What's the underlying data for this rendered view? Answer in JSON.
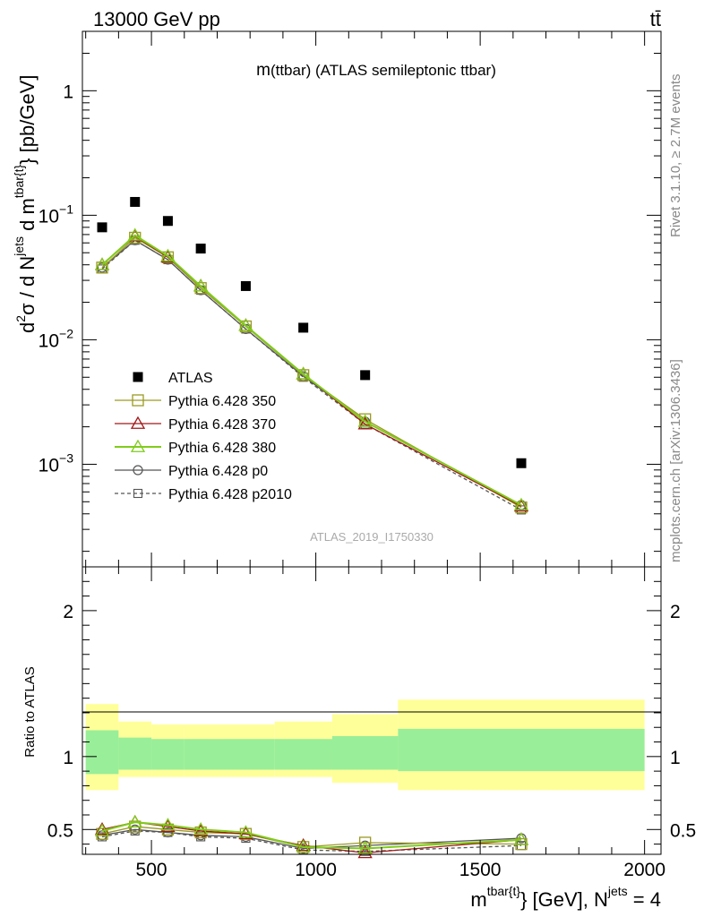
{
  "header": {
    "energy_label": "13000 GeV pp",
    "process_label": "tt̄"
  },
  "side": {
    "rivet_label": "Rivet 3.1.10, ≥ 2.7M events",
    "mcplots_label": "mcplots.cern.ch [arXiv:1306.3436]"
  },
  "colors": {
    "data": "#000000",
    "py350": "#9a9a22",
    "py370": "#a01818",
    "py380": "#7fcc1a",
    "p0": "#555555",
    "p2010": "#555555",
    "band_inner": "#99ee99",
    "band_outer": "#ffff99"
  },
  "chart_data": [
    {
      "type": "line",
      "title_main": "m",
      "title_rest": "(ttbar) (ATLAS semileptonic ttbar)",
      "analysis_id": "ATLAS_2019_I1750330",
      "yscale": "log",
      "ylim": [
        0.00015,
        3.0
      ],
      "xlim": [
        290,
        2050
      ],
      "y_ticks": [
        {
          "value": 1,
          "label": "1"
        },
        {
          "value": 0.1,
          "base": "10",
          "exp": "−1"
        },
        {
          "value": 0.01,
          "base": "10",
          "exp": "−2"
        },
        {
          "value": 0.001,
          "base": "10",
          "exp": "−3"
        }
      ],
      "ylabel": {
        "p1": "d",
        "p1sup": "2",
        "p2": "σ  /  d N",
        "p2sup": "jets",
        "p3": " d m",
        "p3sup": "tbar{t}",
        "p4": "} [pb/GeV]"
      },
      "x": [
        350,
        450,
        550,
        650,
        787,
        962,
        1150,
        1625
      ],
      "series": [
        {
          "name": "ATLAS",
          "key": "data",
          "values": [
            0.08,
            0.128,
            0.09,
            0.054,
            0.027,
            0.0125,
            0.0052,
            0.00102
          ]
        },
        {
          "name": "Pythia 6.428 350",
          "key": "py350",
          "values": [
            0.038,
            0.066,
            0.046,
            0.026,
            0.0128,
            0.0052,
            0.0023,
            0.00045
          ]
        },
        {
          "name": "Pythia 6.428 370",
          "key": "py370",
          "values": [
            0.04,
            0.068,
            0.046,
            0.027,
            0.013,
            0.0053,
            0.0021,
            0.00046
          ]
        },
        {
          "name": "Pythia 6.428 380",
          "key": "py380",
          "values": [
            0.04,
            0.069,
            0.047,
            0.027,
            0.013,
            0.0053,
            0.0022,
            0.00047
          ]
        },
        {
          "name": "Pythia 6.428 p0",
          "key": "p0",
          "values": [
            0.038,
            0.063,
            0.044,
            0.025,
            0.0122,
            0.0051,
            0.0022,
            0.00047
          ]
        },
        {
          "name": "Pythia 6.428 p2010",
          "key": "p2010",
          "values": [
            0.037,
            0.063,
            0.044,
            0.025,
            0.0122,
            0.005,
            0.0021,
            0.00043
          ]
        }
      ]
    },
    {
      "type": "line",
      "ylabel": "Ratio to ATLAS",
      "ylim": [
        0.33,
        2.3
      ],
      "xlim": [
        290,
        2050
      ],
      "y_ticks": [
        0.5,
        1,
        2
      ],
      "x_ticks": [
        500,
        1000,
        1500,
        2000
      ],
      "xlabel": {
        "p1": "m",
        "p1sup": "tbar{t}",
        "p2": "} [GeV], N",
        "p2sup": "jets",
        "p3": " = 4"
      },
      "bins": [
        [
          300,
          400
        ],
        [
          400,
          500
        ],
        [
          500,
          600
        ],
        [
          600,
          700
        ],
        [
          700,
          875
        ],
        [
          875,
          1050
        ],
        [
          1050,
          1250
        ],
        [
          1250,
          2000
        ]
      ],
      "band_inner": [
        [
          0.88,
          1.18
        ],
        [
          0.91,
          1.13
        ],
        [
          0.91,
          1.12
        ],
        [
          0.91,
          1.12
        ],
        [
          0.91,
          1.12
        ],
        [
          0.91,
          1.12
        ],
        [
          0.91,
          1.14
        ],
        [
          0.9,
          1.19
        ]
      ],
      "band_outer": [
        [
          0.77,
          1.36
        ],
        [
          0.86,
          1.24
        ],
        [
          0.86,
          1.22
        ],
        [
          0.86,
          1.22
        ],
        [
          0.86,
          1.22
        ],
        [
          0.86,
          1.24
        ],
        [
          0.82,
          1.29
        ],
        [
          0.77,
          1.39
        ]
      ],
      "x": [
        350,
        450,
        550,
        650,
        787,
        962,
        1150,
        1625
      ],
      "series": [
        {
          "name": "Pythia 6.428 350",
          "key": "py350",
          "values": [
            0.47,
            0.52,
            0.5,
            0.48,
            0.47,
            0.38,
            0.41,
            0.4
          ]
        },
        {
          "name": "Pythia 6.428 370",
          "key": "py370",
          "values": [
            0.5,
            0.55,
            0.52,
            0.49,
            0.47,
            0.39,
            0.34,
            0.43
          ]
        },
        {
          "name": "Pythia 6.428 380",
          "key": "py380",
          "values": [
            0.49,
            0.55,
            0.53,
            0.5,
            0.48,
            0.38,
            0.37,
            0.43
          ]
        },
        {
          "name": "Pythia 6.428 p0",
          "key": "p0",
          "values": [
            0.46,
            0.5,
            0.48,
            0.46,
            0.45,
            0.37,
            0.39,
            0.44
          ]
        },
        {
          "name": "Pythia 6.428 p2010",
          "key": "p2010",
          "values": [
            0.45,
            0.49,
            0.48,
            0.45,
            0.44,
            0.36,
            0.35,
            0.39
          ]
        }
      ]
    }
  ]
}
